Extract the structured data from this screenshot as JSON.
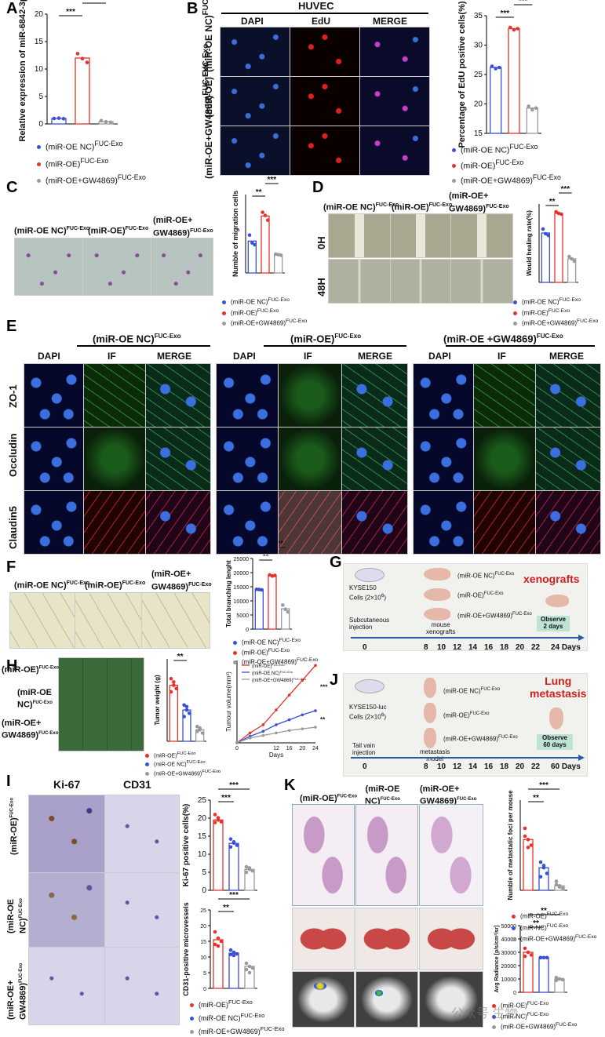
{
  "colors": {
    "red": "#e8322b",
    "blue": "#3b4fd8",
    "gray": "#9a9a9a",
    "green": "#5aa05a",
    "arrow": "#2a5aa8",
    "title_red": "#d02020"
  },
  "panels": {
    "A": "A",
    "B": "B",
    "C": "C",
    "D": "D",
    "E": "E",
    "F": "F",
    "G": "G",
    "H": "H",
    "I": "I",
    "J": "J",
    "K": "K"
  },
  "groups": {
    "nc": "(miR-OE NC)",
    "oe": "(miR-OE)",
    "gw": "(miR-OE+GW4869)",
    "gw_spaced": "(miR-OE +GW4869)",
    "oe_nc_short": "(miR-NC)",
    "sup": "FUC-Exo"
  },
  "sig": {
    "three": "***",
    "two": "**",
    "one": "*"
  },
  "B": {
    "title": "HUVEC",
    "cols": [
      "DAPI",
      "EdU",
      "MERGE"
    ]
  },
  "D": {
    "rows": [
      "0H",
      "48H"
    ]
  },
  "E": {
    "cols": [
      "DAPI",
      "IF",
      "MERGE"
    ],
    "rows": [
      "ZO-1",
      "Occludin",
      "Claudin5"
    ]
  },
  "G": {
    "cells": "KYSE150",
    "cells_count": "Cells (2×10",
    "route": "Subcutaneous",
    "route2": "injection",
    "model": "mouse",
    "model2": "xenografts",
    "title": "xenografts",
    "observe": "Observe",
    "observe_days": "2 days",
    "timeline": [
      "0",
      "8",
      "10",
      "12",
      "14",
      "16",
      "18",
      "20",
      "22"
    ],
    "end": "24 Days"
  },
  "J": {
    "cells": "KYSE150-luc",
    "cells_count": "Cells (2×10",
    "route": "Tail vain",
    "route2": "injection",
    "model": "metastasis",
    "model2": "model",
    "title1": "Lung",
    "title2": "metastasis",
    "observe": "Observe",
    "observe_days": "60 days",
    "timeline": [
      "0",
      "8",
      "10",
      "12",
      "14",
      "16",
      "18",
      "20",
      "22"
    ],
    "end": "60 Days"
  },
  "I": {
    "cols": [
      "Ki-67",
      "CD31"
    ]
  },
  "watermark": "公众号 生物",
  "chart_data": [
    {
      "panel": "A",
      "type": "bar",
      "categories": [
        "(miR-OE NC)",
        "(miR-OE)",
        "(miR-OE+GW4869)"
      ],
      "values": [
        1.0,
        12.0,
        0.4
      ],
      "ylabel": "Relative expression of miR-6842-3p",
      "ylim": [
        0,
        20
      ],
      "yticks": [
        0,
        5,
        10,
        15,
        20
      ],
      "points": [
        [
          1.0,
          1.05,
          0.95
        ],
        [
          12.8,
          11.9,
          11.2
        ],
        [
          0.6,
          0.4,
          0.3
        ]
      ]
    },
    {
      "panel": "B",
      "type": "bar",
      "categories": [
        "(miR-OE NC)",
        "(miR-OE)",
        "(miR-OE+GW4869)"
      ],
      "values": [
        26.2,
        32.8,
        19.3
      ],
      "ylabel": "Percentage of EdU positive cells(%)",
      "ylim": [
        15,
        35
      ],
      "yticks": [
        15,
        20,
        25,
        30,
        35
      ],
      "points": [
        [
          26.4,
          26.0,
          26.2
        ],
        [
          33.0,
          32.6,
          32.8
        ],
        [
          19.6,
          19.0,
          19.3
        ]
      ]
    },
    {
      "panel": "C",
      "type": "bar",
      "categories": [
        "(miR-OE NC)",
        "(miR-OE)",
        "(miR-OE+GW4869)"
      ],
      "values": [
        122,
        218,
        70
      ],
      "ylabel": "Numble of migration cells",
      "ylim": [
        0,
        300
      ],
      "points": [
        [
          145,
          115,
          108
        ],
        [
          232,
          220,
          202
        ],
        [
          72,
          70,
          68
        ]
      ]
    },
    {
      "panel": "D",
      "type": "bar",
      "categories": [
        "(miR-OE NC)",
        "(miR-OE)",
        "(miR-OE+GW4869)"
      ],
      "values": [
        63,
        88,
        30
      ],
      "ylabel": "Would healing rate(%)",
      "ylim": [
        0,
        100
      ],
      "points": [
        [
          68,
          62,
          60
        ],
        [
          90,
          88,
          87
        ],
        [
          33,
          30,
          27
        ]
      ]
    },
    {
      "panel": "F",
      "type": "bar",
      "categories": [
        "(miR-OE NC)",
        "(miR-OE)",
        "(miR-OE+GW4869)"
      ],
      "values": [
        14000,
        19000,
        7200
      ],
      "ylabel": "Total branching lenght",
      "ylim": [
        0,
        25000
      ],
      "yticks": [
        0,
        5000,
        10000,
        15000,
        20000,
        25000
      ],
      "points": [
        [
          14100,
          14000,
          13900
        ],
        [
          19200,
          18800,
          19000
        ],
        [
          8500,
          7000,
          6100
        ]
      ]
    },
    {
      "panel": "H-weight",
      "type": "bar",
      "categories": [
        "(miR-OE)",
        "(miR-OE NC)",
        "(miR-OE+GW4869)"
      ],
      "values": [
        0.34,
        0.19,
        0.07
      ],
      "ylabel": "Tumor weight (g)",
      "ylim": [
        0,
        0.5
      ],
      "points": [
        [
          0.38,
          0.34,
          0.32,
          0.3,
          0.36
        ],
        [
          0.22,
          0.19,
          0.17,
          0.15,
          0.21
        ],
        [
          0.09,
          0.07,
          0.05,
          0.06,
          0.08
        ]
      ]
    },
    {
      "panel": "H-volume",
      "type": "line",
      "x": [
        0,
        4,
        8,
        12,
        16,
        20,
        24
      ],
      "xlabel": "Days",
      "ylabel": "Tumour volume(mm³)",
      "ylim": [
        0,
        500
      ],
      "series": [
        {
          "name": "(miR-OE)",
          "values": [
            0,
            60,
            110,
            200,
            290,
            380,
            470
          ]
        },
        {
          "name": "(miR-OE NC)",
          "values": [
            0,
            40,
            70,
            110,
            140,
            170,
            195
          ]
        },
        {
          "name": "(miR-OE+GW4869)",
          "values": [
            0,
            30,
            45,
            60,
            75,
            85,
            95
          ]
        }
      ]
    },
    {
      "panel": "I-ki67",
      "type": "bar",
      "categories": [
        "(miR-OE)",
        "(miR-OE NC)",
        "(miR-OE+GW4869)"
      ],
      "values": [
        19.5,
        13.0,
        5.8
      ],
      "ylabel": "Ki-67 positive cells(%)",
      "ylim": [
        0,
        25
      ],
      "yticks": [
        0,
        5,
        10,
        15,
        20,
        25
      ],
      "points": [
        [
          21.0,
          19.5,
          19.0,
          18.8,
          20.1
        ],
        [
          14.2,
          13.1,
          12.5,
          12.0,
          13.4
        ],
        [
          6.5,
          5.8,
          5.4,
          5.0,
          6.2
        ]
      ]
    },
    {
      "panel": "I-cd31",
      "type": "bar",
      "categories": [
        "(miR-OE)",
        "(miR-OE NC)",
        "(miR-OE+GW4869)"
      ],
      "values": [
        15.5,
        11.2,
        7.0
      ],
      "ylabel": "CD31-positive microvessels",
      "ylim": [
        0,
        25
      ],
      "yticks": [
        0,
        5,
        10,
        15,
        20,
        25
      ],
      "points": [
        [
          18.0,
          16.0,
          15.0,
          14.0,
          13.5
        ],
        [
          12.2,
          11.5,
          11.0,
          10.8,
          10.5
        ],
        [
          8.0,
          7.0,
          6.5,
          6.0,
          5.0
        ]
      ]
    },
    {
      "panel": "K-foci",
      "type": "bar",
      "categories": [
        "(miR-OE)",
        "(miR-NC)",
        "(miR-OE+GW4869)"
      ],
      "values": [
        4.5,
        2.0,
        0.4
      ],
      "ylabel": "Numble of metastatic foci per mouse",
      "ylim": [
        0,
        8
      ],
      "points": [
        [
          5.5,
          4.5,
          4.0,
          4.8,
          3.8
        ],
        [
          2.5,
          2.0,
          1.5,
          1.2,
          2.2
        ],
        [
          0.8,
          0.4,
          0.2,
          0.5,
          0.3
        ]
      ]
    },
    {
      "panel": "K-radiance",
      "type": "bar",
      "categories": [
        "(miR-OE)",
        "(miR-NC)",
        "(miR-OE+GW4869)"
      ],
      "values": [
        30000,
        26000,
        10000
      ],
      "ylabel": "Avg Radiance [p/s/cm²/sr]",
      "ylim": [
        0,
        50000
      ],
      "yticks": [
        0,
        10000,
        20000,
        30000,
        40000,
        50000
      ],
      "points": [
        [
          33000,
          30000,
          28000,
          27000
        ],
        [
          26000,
          26000,
          26000,
          26000
        ],
        [
          11000,
          10000,
          9500,
          9000
        ]
      ]
    }
  ]
}
